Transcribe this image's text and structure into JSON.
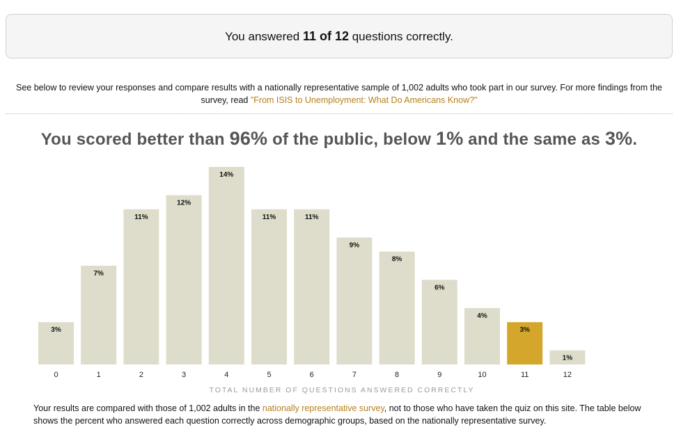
{
  "score_box": {
    "prefix": "You answered ",
    "correct": "11",
    "of": " of ",
    "total": "12",
    "suffix": " questions correctly."
  },
  "intro": {
    "text": "See below to review your responses and compare results with a nationally representative sample of 1,002 adults who took part in our survey. For more findings from the survey, read ",
    "link_text": "\"From ISIS to Unemployment: What Do Americans Know?\""
  },
  "headline": {
    "part1": "You scored better than ",
    "better": "96%",
    "part2": " of the public, below ",
    "below": "1%",
    "part3": " and the same as ",
    "same": "3%",
    "part4": "."
  },
  "chart_data": {
    "type": "bar",
    "categories": [
      "0",
      "1",
      "2",
      "3",
      "4",
      "5",
      "6",
      "7",
      "8",
      "9",
      "10",
      "11",
      "12"
    ],
    "values": [
      3,
      7,
      11,
      12,
      14,
      11,
      11,
      9,
      8,
      6,
      4,
      3,
      1
    ],
    "labels": [
      "3%",
      "7%",
      "11%",
      "12%",
      "14%",
      "11%",
      "11%",
      "9%",
      "8%",
      "6%",
      "4%",
      "3%",
      "1%"
    ],
    "highlight_category": "11",
    "xlabel": "TOTAL NUMBER OF QUESTIONS ANSWERED CORRECTLY",
    "ylabel": "",
    "ylim": [
      0,
      14
    ],
    "grid": false,
    "colors": {
      "bar": "#deddcb",
      "highlight": "#d4a72c"
    }
  },
  "footnote": {
    "text1": "Your results are compared with those of 1,002 adults in the ",
    "link_text": "nationally representative survey",
    "text2": ", not to those who have taken the quiz on this site. The table below shows the percent who answered each question correctly across demographic groups, based on the nationally representative survey."
  }
}
